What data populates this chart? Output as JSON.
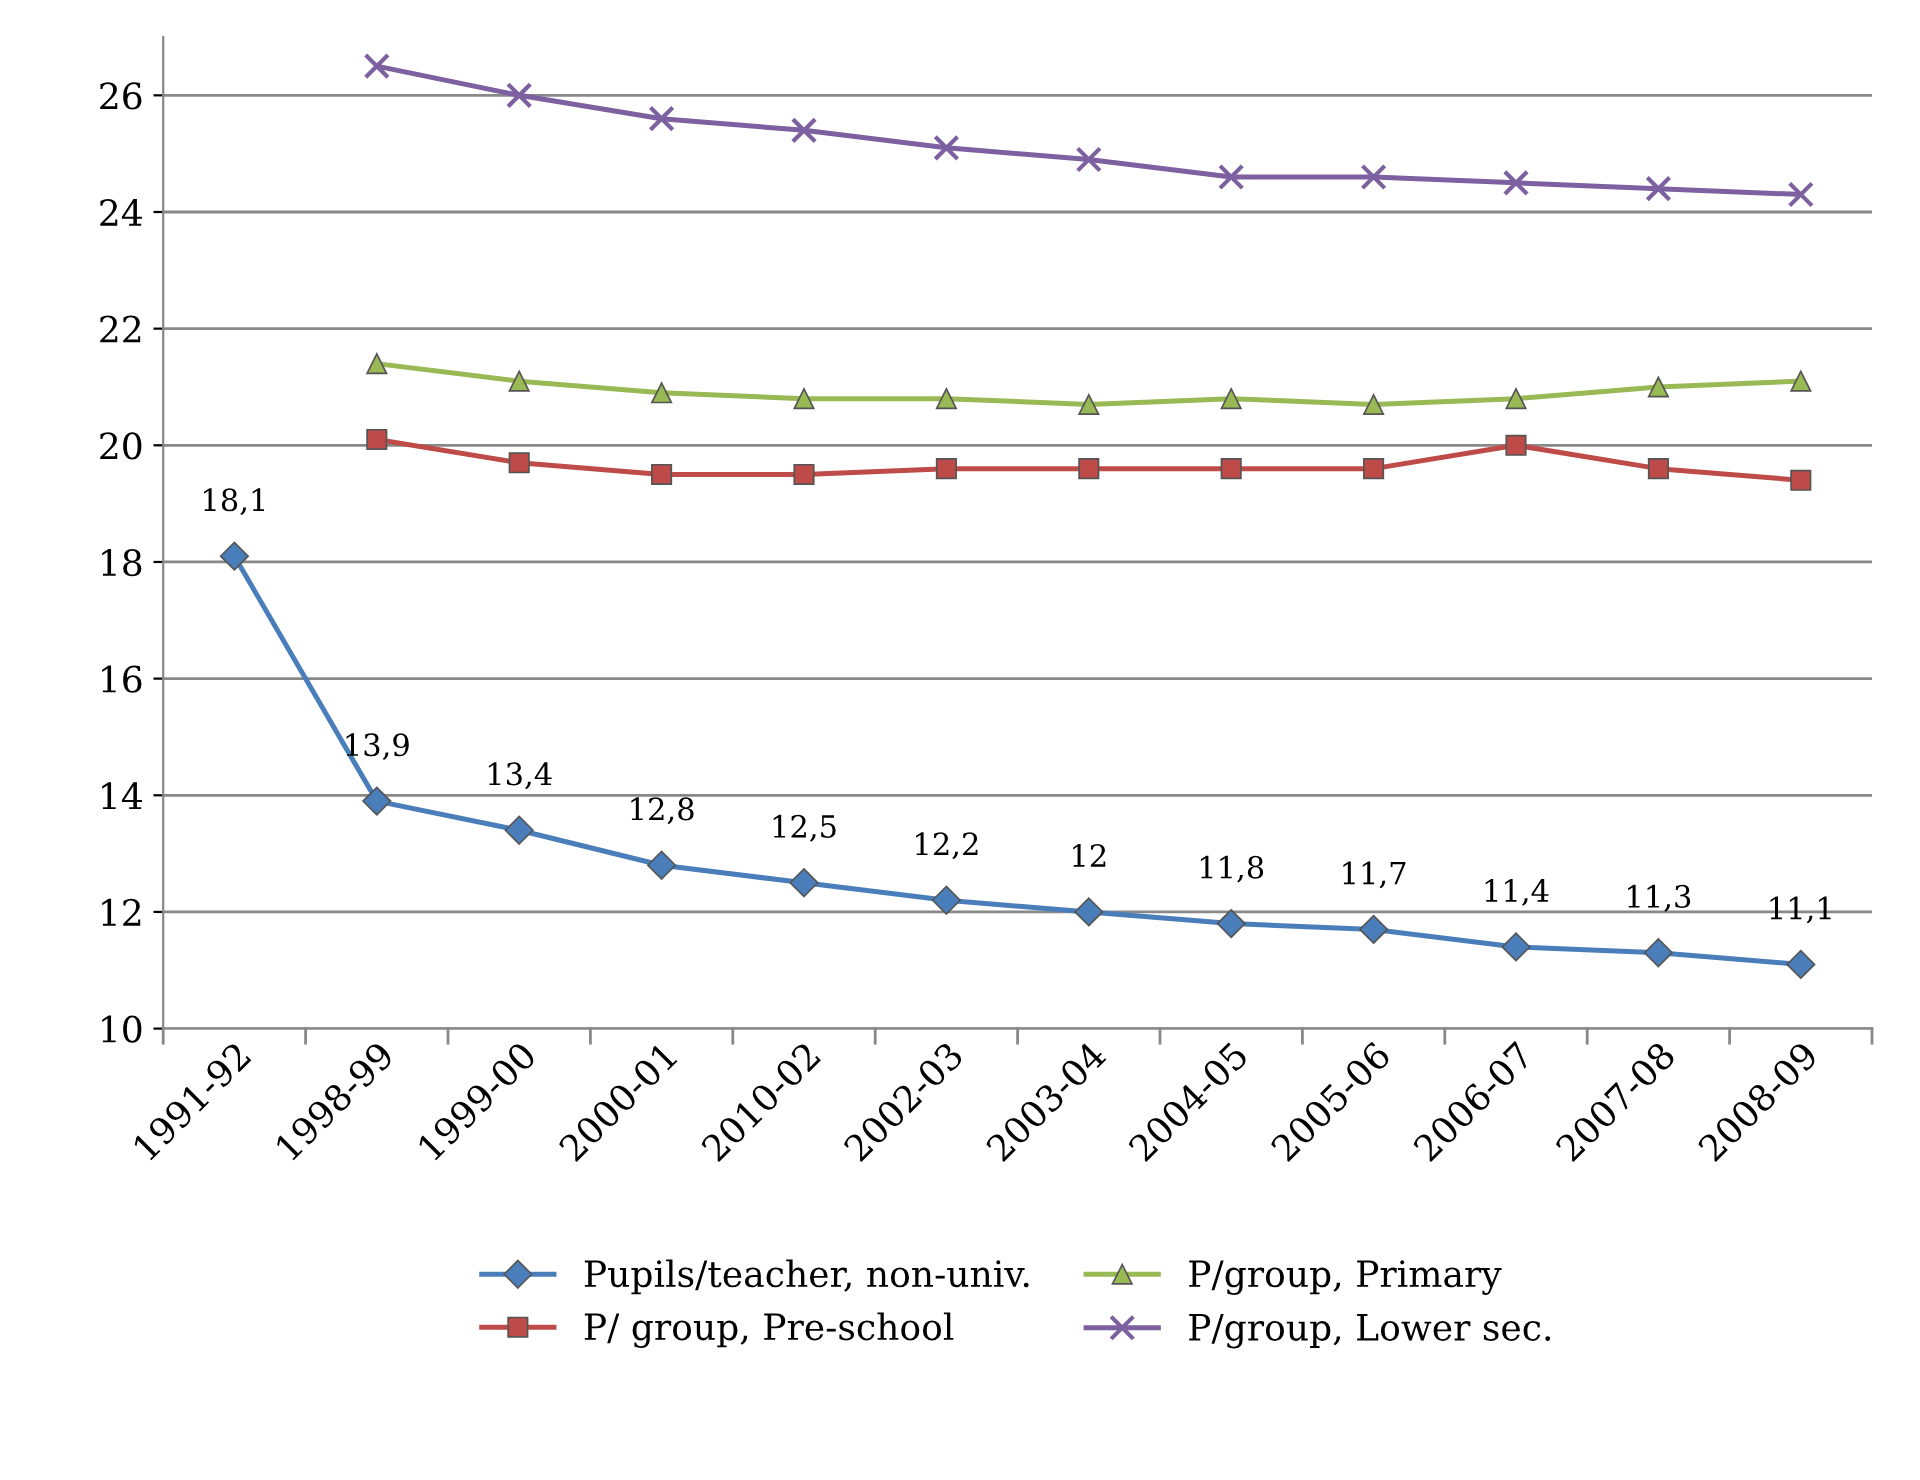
{
  "chart_data": {
    "type": "line",
    "categories": [
      "1991-92",
      "1998-99",
      "1999-00",
      "2000-01",
      "2010-02",
      "2002-03",
      "2003-04",
      "2004-05",
      "2005-06",
      "2006-07",
      "2007-08",
      "2008-09"
    ],
    "series": [
      {
        "name": "Pupils/teacher, non-univ.",
        "color": "#4a7ebb",
        "marker": "diamond",
        "values": [
          18.1,
          13.9,
          13.4,
          12.8,
          12.5,
          12.2,
          12,
          11.8,
          11.7,
          11.4,
          11.3,
          11.1
        ],
        "value_labels": [
          "18,1",
          "13,9",
          "13,4",
          "12,8",
          "12,5",
          "12,2",
          "12",
          "11,8",
          "11,7",
          "11,4",
          "11,3",
          "11,1"
        ]
      },
      {
        "name": "P/ group, Pre-school",
        "color": "#be4b48",
        "marker": "square",
        "values": [
          null,
          20.1,
          19.7,
          19.5,
          19.5,
          19.6,
          19.6,
          19.6,
          19.6,
          20.0,
          19.6,
          19.4
        ]
      },
      {
        "name": "P/group, Primary",
        "color": "#98b954",
        "marker": "triangle",
        "values": [
          null,
          21.4,
          21.1,
          20.9,
          20.8,
          20.8,
          20.7,
          20.8,
          20.7,
          20.8,
          21.0,
          21.1
        ]
      },
      {
        "name": "P/group, Lower sec.",
        "color": "#7d60a0",
        "marker": "cross",
        "values": [
          null,
          26.5,
          26.0,
          25.6,
          25.4,
          25.1,
          24.9,
          24.6,
          24.6,
          24.5,
          24.4,
          24.3
        ]
      }
    ],
    "ylim": [
      10,
      27
    ],
    "yticks": [
      10,
      12,
      14,
      16,
      18,
      20,
      22,
      24,
      26
    ],
    "grid": "y",
    "legend": "bottom",
    "line_style": "solid"
  }
}
